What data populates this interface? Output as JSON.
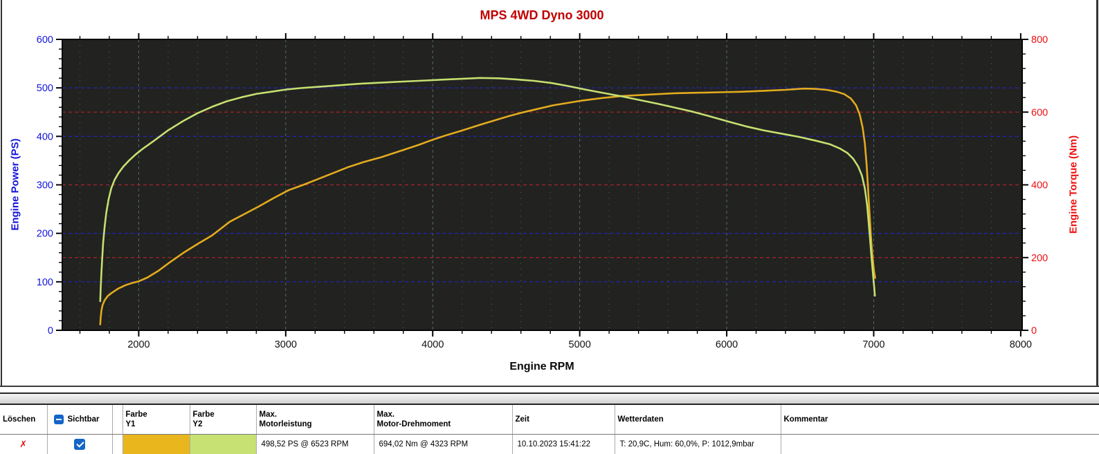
{
  "chart_data": {
    "type": "line",
    "title": "MPS 4WD Dyno 3000",
    "title_color": "#C00000",
    "plot_bg": "#222221",
    "x_axis": {
      "label": "Engine RPM",
      "range": [
        1480,
        8010
      ],
      "ticks": [
        2000,
        3000,
        4000,
        5000,
        6000,
        7000,
        8000
      ],
      "minor_step": 200,
      "major_grid_color": "#4E6E66",
      "minor_grid_color": "#2A6A2A",
      "tick_label_color": "#111111"
    },
    "y_left": {
      "label": "Engine Power (PS)",
      "range": [
        0,
        600
      ],
      "ticks": [
        0,
        100,
        200,
        300,
        400,
        500,
        600
      ],
      "minor_step": 20,
      "color": "#1414DC",
      "grid_color": "#2424C8"
    },
    "y_right": {
      "label": "Engine Torque (Nm)",
      "range": [
        0,
        800
      ],
      "ticks": [
        0,
        200,
        400,
        600,
        800
      ],
      "minor_step": 40,
      "color": "#EE1111",
      "grid_color": "#A82424"
    },
    "grid": true,
    "legend": "none",
    "series": [
      {
        "name": "Engine Power (PS)",
        "axis": "left",
        "color": "#E3AC1E",
        "max_label": "498,52 PS @ 6523 RPM",
        "points": [
          [
            1738,
            12
          ],
          [
            1741,
            25
          ],
          [
            1746,
            40
          ],
          [
            1754,
            52
          ],
          [
            1768,
            62
          ],
          [
            1790,
            71
          ],
          [
            1820,
            78
          ],
          [
            1860,
            86
          ],
          [
            1910,
            93
          ],
          [
            1960,
            98
          ],
          [
            2000,
            101
          ],
          [
            2060,
            109
          ],
          [
            2130,
            122
          ],
          [
            2210,
            140
          ],
          [
            2300,
            159
          ],
          [
            2400,
            178
          ],
          [
            2500,
            196
          ],
          [
            2620,
            224
          ],
          [
            2720,
            240
          ],
          [
            2820,
            256
          ],
          [
            2920,
            273
          ],
          [
            3020,
            289
          ],
          [
            3120,
            300
          ],
          [
            3220,
            312
          ],
          [
            3320,
            324
          ],
          [
            3420,
            336
          ],
          [
            3530,
            347
          ],
          [
            3650,
            357
          ],
          [
            3800,
            372
          ],
          [
            3900,
            382
          ],
          [
            4000,
            393
          ],
          [
            4100,
            403
          ],
          [
            4200,
            412
          ],
          [
            4323,
            424
          ],
          [
            4420,
            433
          ],
          [
            4520,
            442
          ],
          [
            4620,
            450
          ],
          [
            4720,
            457
          ],
          [
            4820,
            464
          ],
          [
            4920,
            469
          ],
          [
            5020,
            474
          ],
          [
            5150,
            479
          ],
          [
            5280,
            483
          ],
          [
            5400,
            485
          ],
          [
            5520,
            487
          ],
          [
            5650,
            489
          ],
          [
            5800,
            490
          ],
          [
            5950,
            491
          ],
          [
            6100,
            492
          ],
          [
            6250,
            494
          ],
          [
            6400,
            496
          ],
          [
            6523,
            498.5
          ],
          [
            6600,
            498
          ],
          [
            6680,
            496
          ],
          [
            6750,
            492
          ],
          [
            6800,
            487
          ],
          [
            6845,
            478
          ],
          [
            6880,
            464
          ],
          [
            6905,
            445
          ],
          [
            6925,
            418
          ],
          [
            6940,
            385
          ],
          [
            6952,
            340
          ],
          [
            6962,
            290
          ],
          [
            6972,
            240
          ],
          [
            6982,
            190
          ],
          [
            6992,
            150
          ],
          [
            7002,
            122
          ],
          [
            7010,
            108
          ]
        ]
      },
      {
        "name": "Engine Torque (Nm)",
        "axis": "right",
        "color": "#C6E070",
        "max_label": "694,02 Nm @ 4323 RPM",
        "points": [
          [
            1738,
            80
          ],
          [
            1741,
            110
          ],
          [
            1745,
            150
          ],
          [
            1751,
            195
          ],
          [
            1758,
            240
          ],
          [
            1768,
            285
          ],
          [
            1780,
            325
          ],
          [
            1795,
            360
          ],
          [
            1813,
            390
          ],
          [
            1835,
            413
          ],
          [
            1862,
            432
          ],
          [
            1895,
            450
          ],
          [
            1935,
            467
          ],
          [
            1980,
            484
          ],
          [
            2030,
            500
          ],
          [
            2100,
            520
          ],
          [
            2200,
            550
          ],
          [
            2300,
            575
          ],
          [
            2400,
            597
          ],
          [
            2500,
            615
          ],
          [
            2600,
            630
          ],
          [
            2700,
            641
          ],
          [
            2800,
            650
          ],
          [
            2900,
            656
          ],
          [
            3000,
            662
          ],
          [
            3100,
            666
          ],
          [
            3200,
            669
          ],
          [
            3300,
            672
          ],
          [
            3400,
            675
          ],
          [
            3500,
            678
          ],
          [
            3650,
            681
          ],
          [
            3800,
            684
          ],
          [
            3950,
            687
          ],
          [
            4100,
            690
          ],
          [
            4220,
            692
          ],
          [
            4323,
            694
          ],
          [
            4450,
            693
          ],
          [
            4570,
            690
          ],
          [
            4690,
            686
          ],
          [
            4810,
            680
          ],
          [
            4930,
            671
          ],
          [
            5050,
            661
          ],
          [
            5170,
            652
          ],
          [
            5290,
            643
          ],
          [
            5410,
            633
          ],
          [
            5530,
            623
          ],
          [
            5650,
            612
          ],
          [
            5770,
            601
          ],
          [
            5890,
            588
          ],
          [
            6010,
            574
          ],
          [
            6130,
            561
          ],
          [
            6250,
            550
          ],
          [
            6370,
            541
          ],
          [
            6490,
            532
          ],
          [
            6610,
            521
          ],
          [
            6700,
            512
          ],
          [
            6770,
            500
          ],
          [
            6820,
            488
          ],
          [
            6860,
            472
          ],
          [
            6895,
            450
          ],
          [
            6920,
            425
          ],
          [
            6940,
            390
          ],
          [
            6955,
            345
          ],
          [
            6965,
            300
          ],
          [
            6975,
            250
          ],
          [
            6985,
            200
          ],
          [
            6995,
            155
          ],
          [
            7003,
            120
          ],
          [
            7008,
            95
          ]
        ]
      }
    ]
  },
  "table": {
    "headers": {
      "loeschen": "Löschen",
      "sichtbar": "Sichtbar",
      "spacer": "",
      "farbe_y1": "Farbe\nY1",
      "farbe_y2": "Farbe\nY2",
      "max_power": "Max.\nMotorleistung",
      "max_torque": "Max.\nMotor-Drehmoment",
      "zeit": "Zeit",
      "wetterdaten": "Wetterdaten",
      "kommentar": "Kommentar"
    },
    "select_all_state": "partial",
    "delete_color": "#E01010",
    "checkbox_color": "#1565C8",
    "row": {
      "delete_label": "✗",
      "visible_checked": true,
      "color_y1": "#EAB61E",
      "color_y2": "#C7E272",
      "max_power": "498,52 PS @ 6523 RPM",
      "max_torque": "694,02 Nm @ 4323 RPM",
      "zeit": "10.10.2023 15:41:22",
      "wetterdaten": "T: 20,9C, Hum: 60,0%, P: 1012,9mbar",
      "kommentar": ""
    }
  }
}
